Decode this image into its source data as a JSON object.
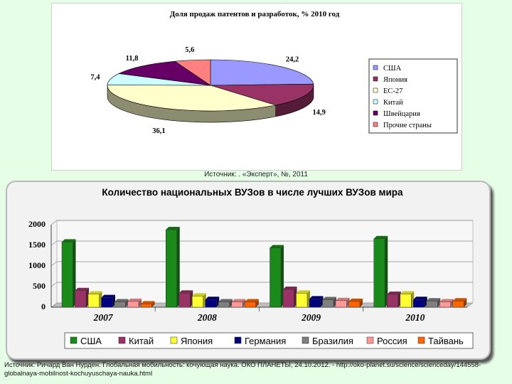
{
  "chart_data": [
    {
      "type": "pie",
      "title": "Доля продаж патентов и разработок, % 2010 год",
      "categories": [
        "США",
        "Япония",
        "ЕС-27",
        "Китай",
        "Швейцария",
        "Прочие страны"
      ],
      "values": [
        24.2,
        14.9,
        36.1,
        7.4,
        11.8,
        5.6
      ],
      "value_labels": [
        "24,2",
        "14,9",
        "36,1",
        "7,4",
        "11,8",
        "5,6"
      ],
      "colors": [
        "#9999ff",
        "#993366",
        "#ffffcc",
        "#ccffff",
        "#660066",
        "#ff8080"
      ],
      "legend_position": "right"
    },
    {
      "type": "bar",
      "title": "Количество национальных ВУЗов в числе лучших ВУЗов мира",
      "categories": [
        "2007",
        "2008",
        "2009",
        "2010"
      ],
      "series": [
        {
          "name": "США",
          "color": "#1a8a1a",
          "values": [
            1580,
            1880,
            1440,
            1660
          ]
        },
        {
          "name": "Китай",
          "color": "#993366",
          "values": [
            400,
            340,
            430,
            310
          ]
        },
        {
          "name": "Япония",
          "color": "#ffff33",
          "values": [
            320,
            270,
            340,
            320
          ]
        },
        {
          "name": "Германия",
          "color": "#00007f",
          "values": [
            230,
            185,
            200,
            185
          ]
        },
        {
          "name": "Бразилия",
          "color": "#808080",
          "values": [
            130,
            130,
            180,
            150
          ]
        },
        {
          "name": "Россия",
          "color": "#ff9999",
          "values": [
            140,
            130,
            160,
            130
          ]
        },
        {
          "name": "Тайвань",
          "color": "#ff6600",
          "values": [
            80,
            130,
            140,
            150
          ]
        }
      ],
      "y_ticks": [
        "2000",
        "1500",
        "1000",
        "500",
        "0"
      ],
      "ylim": [
        0,
        2000
      ],
      "grid": true,
      "legend_position": "bottom"
    }
  ],
  "pie_source": "Источник: . «Эксперт», №, 2011",
  "footer_source": "Источник: Ричард Ван Нурден. Глобальная мобильность: кочующая наука. ОКО ПЛАНЕТЫ, 24.10.2012. - http://oko-planet.su/science/scienceday/144558-globalnaya-mobilnost-kochuyuschaya-nauka.html"
}
